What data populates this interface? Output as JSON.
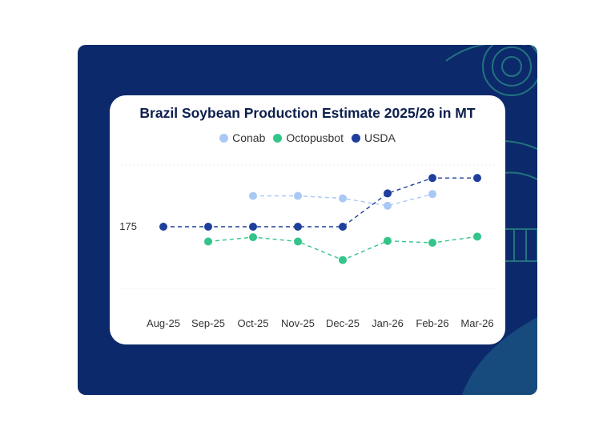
{
  "chart_data": {
    "type": "line",
    "title": "Brazil Soybean Production Estimate 2025/26 in MT",
    "xlabel": "",
    "ylabel": "",
    "legend_position": "top-center",
    "grid": true,
    "categories": [
      "Aug-25",
      "Sep-25",
      "Oct-25",
      "Nov-25",
      "Dec-25",
      "Jan-26",
      "Feb-26",
      "Mar-26"
    ],
    "y_ticks": [
      175
    ],
    "ylim": [
      165,
      185
    ],
    "series": [
      {
        "name": "Conab",
        "color": "#aac8f5",
        "dashed": true,
        "values": [
          null,
          null,
          180.0,
          180.0,
          179.6,
          178.4,
          180.3,
          null
        ]
      },
      {
        "name": "Octopusbot",
        "color": "#33c48a",
        "dashed": true,
        "values": [
          null,
          172.6,
          173.3,
          172.6,
          169.6,
          172.7,
          172.4,
          173.4
        ]
      },
      {
        "name": "USDA",
        "color": "#1e3f9c",
        "dashed": true,
        "values": [
          175.0,
          175.0,
          175.0,
          175.0,
          175.0,
          180.4,
          182.9,
          182.9
        ]
      }
    ]
  },
  "colors": {
    "frame_bg": "#0c2a6b",
    "card_bg": "#ffffff",
    "title": "#0d1f4d"
  }
}
